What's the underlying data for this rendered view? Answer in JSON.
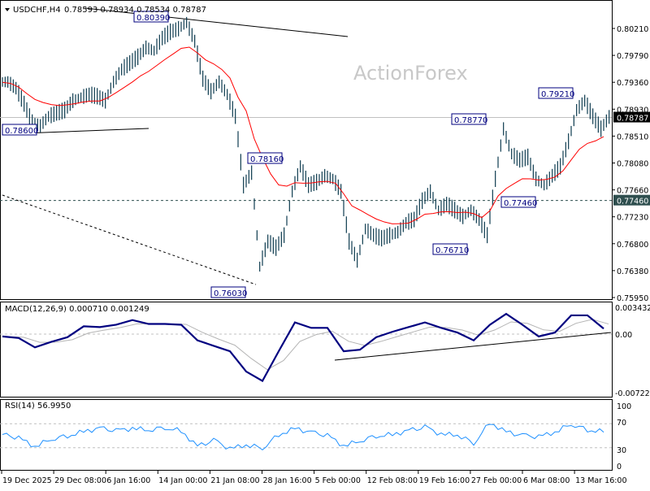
{
  "header": {
    "symbol": "USDCHF,H4",
    "ohlc": "0.78593 0.78934 0.78534 0.78787"
  },
  "watermark": "ActionForex",
  "colors": {
    "bars": "#0d3b4f",
    "ma": "#ff0000",
    "macd": "#000080",
    "signal": "#b4b4b4",
    "rsi": "#1e90ff",
    "current_bg": "#000000",
    "level_bg": "#2f4f4f"
  },
  "chart_data": [
    {
      "type": "line",
      "title": "USDCHF,H4",
      "yticks": [
        "0.80210",
        "0.79790",
        "0.79360",
        "0.78930",
        "0.78510",
        "0.78080",
        "0.77660",
        "0.77230",
        "0.76800",
        "0.76380",
        "0.75950"
      ],
      "ylim": [
        0.7595,
        0.8021
      ],
      "xticks": [
        "19 Dec 2025",
        "29 Dec 08:00",
        "6 Jan 16:00",
        "14 Jan 00:00",
        "21 Jan 08:00",
        "28 Jan 16:00",
        "5 Feb 00:00",
        "12 Feb 08:00",
        "19 Feb 16:00",
        "27 Feb 00:00",
        "6 Mar 08:00",
        "13 Mar 16:00"
      ],
      "closes": [
        0.7935,
        0.7925,
        0.79,
        0.787,
        0.7865,
        0.788,
        0.7885,
        0.789,
        0.7905,
        0.791,
        0.7915,
        0.7912,
        0.7905,
        0.7935,
        0.7955,
        0.7965,
        0.7975,
        0.799,
        0.7985,
        0.8005,
        0.8015,
        0.802,
        0.803,
        0.8,
        0.794,
        0.792,
        0.7935,
        0.7915,
        0.788,
        0.777,
        0.779,
        0.764,
        0.768,
        0.767,
        0.769,
        0.776,
        0.78,
        0.777,
        0.7775,
        0.7785,
        0.778,
        0.776,
        0.768,
        0.765,
        0.77,
        0.769,
        0.7685,
        0.769,
        0.7695,
        0.771,
        0.7715,
        0.7745,
        0.776,
        0.773,
        0.774,
        0.773,
        0.772,
        0.773,
        0.7715,
        0.769,
        0.778,
        0.786,
        0.782,
        0.781,
        0.7815,
        0.778,
        0.777,
        0.7785,
        0.78,
        0.784,
        0.789,
        0.7905,
        0.788,
        0.786,
        0.7879
      ],
      "current_price": "0.78787",
      "horizontal_level": "0.77460",
      "annotations": [
        "0.80390",
        "0.78600",
        "0.78160",
        "0.76030",
        "0.78770",
        "0.79210",
        "0.77460",
        "0.76710"
      ]
    },
    {
      "type": "line",
      "title": "MACD(12,26,9) 0.000710 0.001249",
      "yticks": [
        "0.003432",
        "0.00",
        "-0.007223"
      ],
      "ylim": [
        -0.007223,
        0.003432
      ],
      "macd": [
        -0.0003,
        -0.0005,
        -0.0017,
        -0.001,
        -0.0004,
        0.001,
        0.0009,
        0.0012,
        0.0018,
        0.0013,
        0.0013,
        0.0012,
        -0.0008,
        -0.0015,
        -0.0022,
        -0.0048,
        -0.006,
        -0.0022,
        0.0015,
        0.0008,
        0.0008,
        -0.0022,
        -0.002,
        -0.0004,
        0.0003,
        0.0009,
        0.0015,
        0.0008,
        0.0002,
        -0.0008,
        0.0012,
        0.0026,
        0.0012,
        -0.0003,
        0.0002,
        0.0024,
        0.0024,
        0.0007
      ]
    },
    {
      "type": "line",
      "title": "RSI(14) 56.9950",
      "yticks": [
        "100",
        "70",
        "30",
        "0"
      ],
      "ylim": [
        0,
        100
      ],
      "levels": [
        70,
        30
      ],
      "rsi": [
        52,
        46,
        32,
        45,
        50,
        57,
        62,
        58,
        62,
        60,
        64,
        58,
        32,
        42,
        28,
        35,
        30,
        52,
        62,
        55,
        50,
        33,
        42,
        50,
        52,
        58,
        64,
        52,
        52,
        38,
        72,
        56,
        50,
        48,
        56,
        70,
        60,
        57
      ]
    }
  ]
}
